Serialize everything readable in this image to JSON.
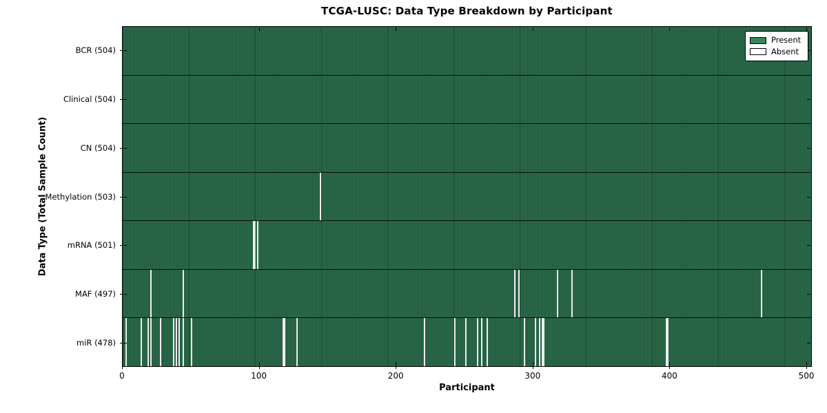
{
  "title": "TCGA-LUSC: Data Type Breakdown by Participant",
  "legend": {
    "present_label": "Present",
    "absent_label": "Absent"
  },
  "colors": {
    "present": "#35875a",
    "absent": "#ededed",
    "field_stripe_light": "#2e714f",
    "field_stripe_dark": "#20563a",
    "axis": "#000000"
  },
  "chart_data": {
    "type": "heatmap",
    "title": "TCGA-LUSC: Data Type Breakdown by Participant",
    "xlabel": "Participant",
    "ylabel": "Data Type (Total Sample Count)",
    "x_range": [
      0,
      504
    ],
    "x_ticks": [
      0,
      100,
      200,
      300,
      400,
      500
    ],
    "total_participants": 504,
    "legend_entries": [
      "Present",
      "Absent"
    ],
    "legend_position": "upper right",
    "grid": false,
    "cell_states": {
      "present": "green",
      "absent": "white"
    },
    "rows": [
      {
        "data_type": "BCR",
        "label": "BCR (504)",
        "present_count": 504,
        "absent_count": 0,
        "absent_participants": []
      },
      {
        "data_type": "Clinical",
        "label": "Clinical (504)",
        "present_count": 504,
        "absent_count": 0,
        "absent_participants": []
      },
      {
        "data_type": "CN",
        "label": "CN (504)",
        "present_count": 504,
        "absent_count": 0,
        "absent_participants": []
      },
      {
        "data_type": "Methylation",
        "label": "Methylation (503)",
        "present_count": 503,
        "absent_count": 1,
        "absent_participants": [
          144
        ]
      },
      {
        "data_type": "mRNA",
        "label": "mRNA (501)",
        "present_count": 501,
        "absent_count": 3,
        "absent_participants": [
          95,
          96,
          98
        ]
      },
      {
        "data_type": "MAF",
        "label": "MAF (497)",
        "present_count": 497,
        "absent_count": 7,
        "absent_participants": [
          20,
          44,
          286,
          289,
          317,
          328,
          466
        ]
      },
      {
        "data_type": "miR",
        "label": "miR (478)",
        "present_count": 478,
        "absent_count": 26,
        "absent_participants": [
          2,
          13,
          18,
          20,
          27,
          37,
          39,
          41,
          44,
          50,
          117,
          118,
          127,
          220,
          242,
          250,
          259,
          262,
          266,
          293,
          301,
          304,
          306,
          307,
          397,
          398
        ]
      }
    ]
  }
}
